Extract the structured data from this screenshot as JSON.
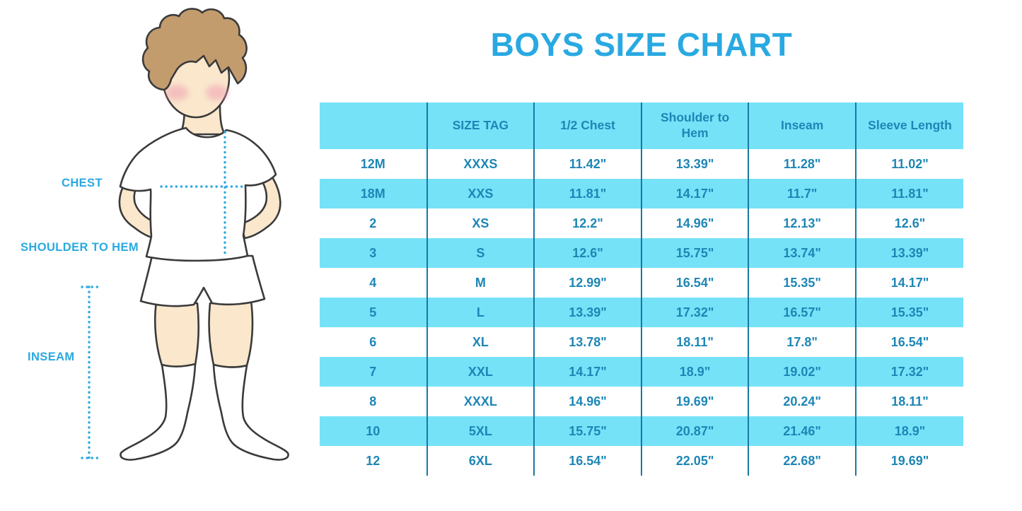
{
  "title": "BOYS SIZE CHART",
  "figure": {
    "description": "outline illustration of a boy in white t-shirt, shorts and knee socks with dotted measurement guides",
    "labels": {
      "chest": "CHEST",
      "shoulder_to_hem": "SHOULDER TO HEM",
      "inseam": "INSEAM"
    }
  },
  "colors": {
    "title_blue": "#29A9E1",
    "label_blue": "#29A9E1",
    "dotted_line_blue": "#2BAAE2",
    "table_text": "#1E86B5",
    "row_band_cyan": "#76E2F8",
    "column_divider": "#1779A4",
    "skin": "#FAE7CC",
    "hair": "#C39C6E",
    "blush": "#EFA0B4",
    "outline": "#3A3A3A",
    "background": "#FFFFFF"
  },
  "chart_data": {
    "type": "table",
    "title": "BOYS SIZE CHART",
    "columns": [
      "",
      "SIZE TAG",
      "1/2 Chest",
      "Shoulder to Hem",
      "Inseam",
      "Sleeve Length"
    ],
    "rows": [
      [
        "12M",
        "XXXS",
        "11.42\"",
        "13.39\"",
        "11.28\"",
        "11.02\""
      ],
      [
        "18M",
        "XXS",
        "11.81\"",
        "14.17\"",
        "11.7\"",
        "11.81\""
      ],
      [
        "2",
        "XS",
        "12.2\"",
        "14.96\"",
        "12.13\"",
        "12.6\""
      ],
      [
        "3",
        "S",
        "12.6\"",
        "15.75\"",
        "13.74\"",
        "13.39\""
      ],
      [
        "4",
        "M",
        "12.99\"",
        "16.54\"",
        "15.35\"",
        "14.17\""
      ],
      [
        "5",
        "L",
        "13.39\"",
        "17.32\"",
        "16.57\"",
        "15.35\""
      ],
      [
        "6",
        "XL",
        "13.78\"",
        "18.11\"",
        "17.8\"",
        "16.54\""
      ],
      [
        "7",
        "XXL",
        "14.17\"",
        "18.9\"",
        "19.02\"",
        "17.32\""
      ],
      [
        "8",
        "XXXL",
        "14.96\"",
        "19.69\"",
        "20.24\"",
        "18.11\""
      ],
      [
        "10",
        "5XL",
        "15.75\"",
        "20.87\"",
        "21.46\"",
        "18.9\""
      ],
      [
        "12",
        "6XL",
        "16.54\"",
        "22.05\"",
        "22.68\"",
        "19.69\""
      ]
    ],
    "layout": {
      "banding": "header cyan, body rows alternate white/cyan starting white",
      "grid": "vertical column dividers only, no horizontal lines"
    }
  }
}
